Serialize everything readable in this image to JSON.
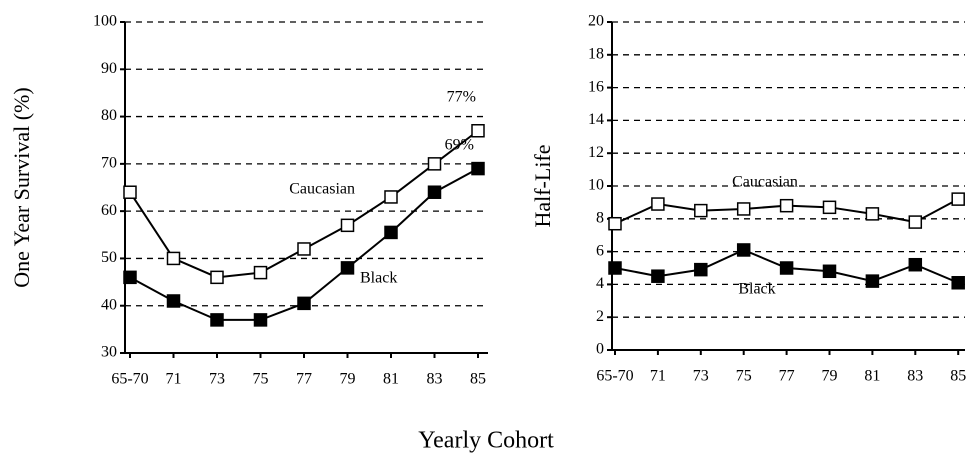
{
  "chart_data": [
    {
      "type": "line",
      "ylabel": "One Year Survival (%)",
      "categories": [
        "65-70",
        "71",
        "73",
        "75",
        "77",
        "79",
        "81",
        "83",
        "85"
      ],
      "ylim": [
        30,
        100
      ],
      "yticks": [
        30,
        40,
        50,
        60,
        70,
        80,
        90,
        100
      ],
      "grid": true,
      "series": [
        {
          "name": "Caucasian",
          "color": "#000000",
          "marker_fill": "#ffffff",
          "values": [
            64,
            50,
            46,
            47,
            52,
            57,
            63,
            70,
            77
          ],
          "value_labels": [
            null,
            null,
            null,
            null,
            null,
            null,
            null,
            null,
            "77%"
          ]
        },
        {
          "name": "Black",
          "color": "#000000",
          "marker_fill": "#000000",
          "values": [
            46,
            41,
            37,
            37,
            40.5,
            48,
            55.5,
            64,
            69
          ],
          "value_labels": [
            null,
            null,
            null,
            null,
            null,
            null,
            null,
            null,
            "69%"
          ]
        }
      ]
    },
    {
      "type": "line",
      "ylabel": "Half-Life",
      "categories": [
        "65-70",
        "71",
        "73",
        "75",
        "77",
        "79",
        "81",
        "83",
        "85"
      ],
      "ylim": [
        0,
        20
      ],
      "yticks": [
        0,
        2,
        4,
        6,
        8,
        10,
        12,
        14,
        16,
        18,
        20
      ],
      "grid": true,
      "series": [
        {
          "name": "Caucasian",
          "color": "#000000",
          "marker_fill": "#ffffff",
          "values": [
            7.7,
            8.9,
            8.5,
            8.6,
            8.8,
            8.7,
            8.3,
            7.8,
            9.2
          ]
        },
        {
          "name": "Black",
          "color": "#000000",
          "marker_fill": "#000000",
          "values": [
            5.0,
            4.5,
            4.9,
            6.1,
            5.0,
            4.8,
            4.2,
            5.2,
            4.1
          ]
        }
      ]
    }
  ],
  "xlabel": "Yearly Cohort"
}
